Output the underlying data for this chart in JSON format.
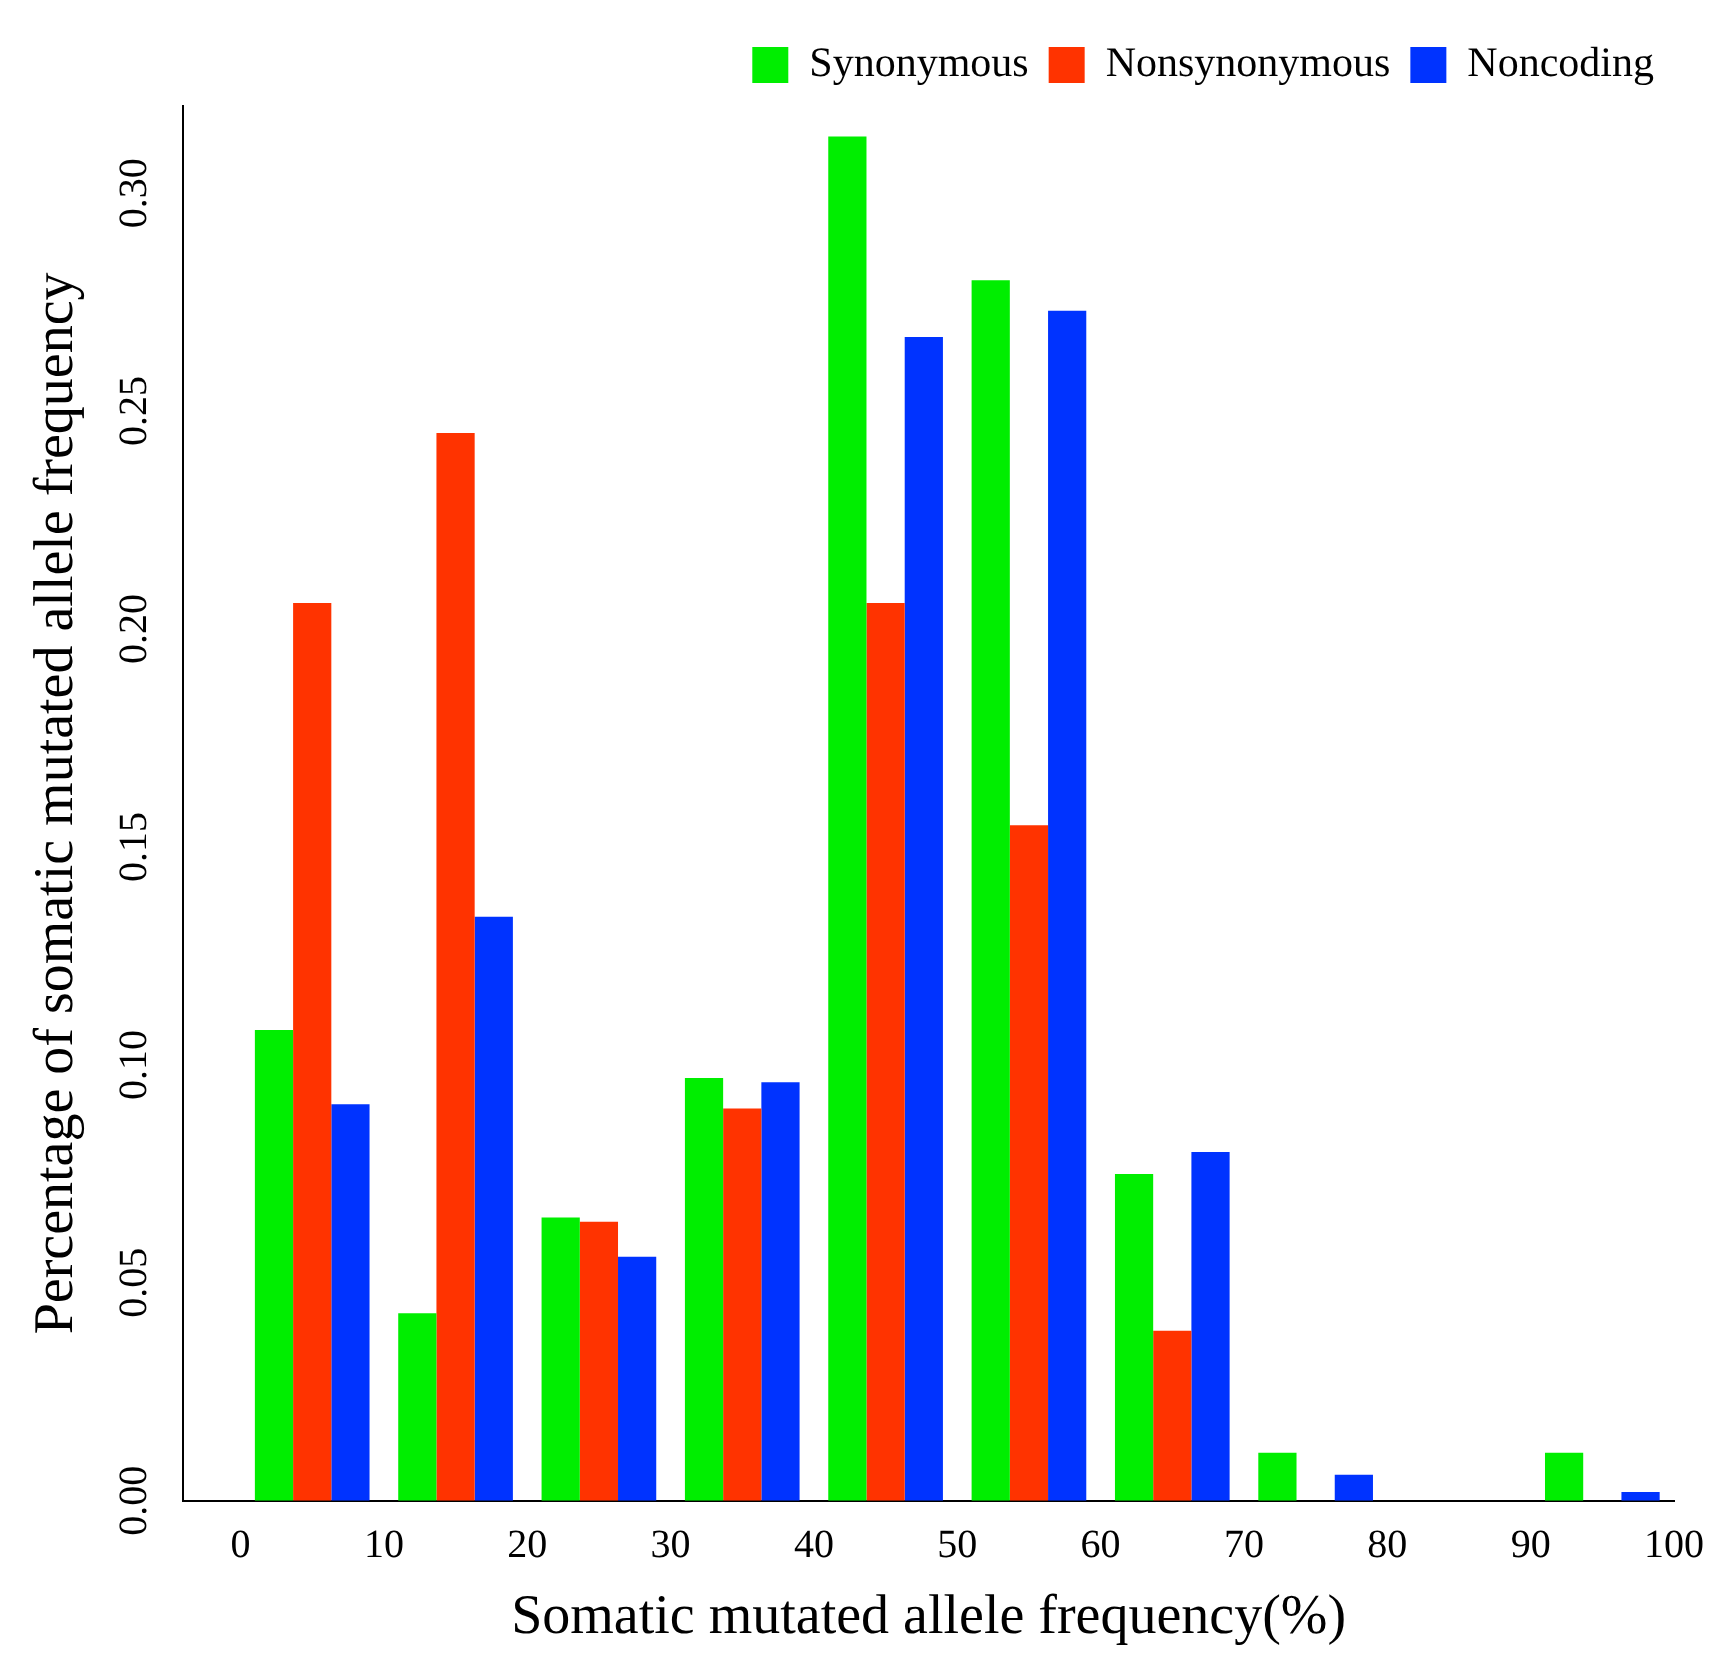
{
  "chart_data": {
    "type": "bar",
    "xlabel": "Somatic mutated allele frequency(%)",
    "ylabel": "Percentage of somatic mutated allele frequency",
    "x": [
      5,
      15,
      25,
      35,
      45,
      55,
      65,
      75,
      85,
      95
    ],
    "series": [
      {
        "name": "Synonymous",
        "color": "#00ee00",
        "values": [
          0.108,
          0.043,
          0.065,
          0.097,
          0.313,
          0.28,
          0.075,
          0.011,
          0,
          0.011
        ]
      },
      {
        "name": "Nonsynonymous",
        "color": "#ff3300",
        "values": [
          0.206,
          0.245,
          0.064,
          0.09,
          0.206,
          0.155,
          0.039,
          0,
          0,
          0
        ]
      },
      {
        "name": "Noncoding",
        "color": "#0033ff",
        "values": [
          0.091,
          0.134,
          0.056,
          0.096,
          0.267,
          0.273,
          0.08,
          0.006,
          0,
          0.002
        ]
      }
    ],
    "xlim": [
      -4,
      100
    ],
    "xticks": [
      0,
      10,
      20,
      30,
      40,
      50,
      60,
      70,
      80,
      90,
      100
    ],
    "ylim": [
      0,
      0.32
    ],
    "yticks": [
      {
        "value": 0,
        "label": "0.00"
      },
      0.05,
      {
        "value": 0.1,
        "label": "0.10"
      },
      0.15,
      {
        "value": 0.2,
        "label": "0.20"
      },
      0.25,
      {
        "value": 0.3,
        "label": "0.30"
      }
    ],
    "grid": false,
    "legend": "top right"
  }
}
